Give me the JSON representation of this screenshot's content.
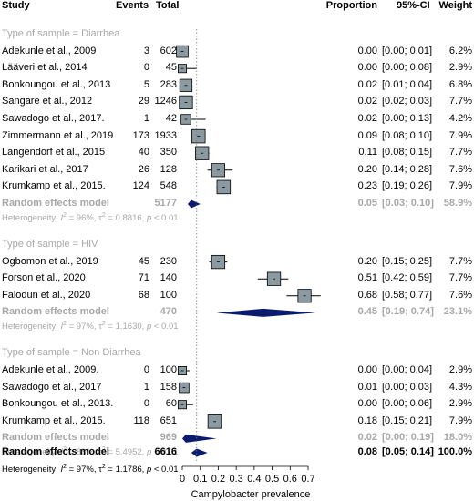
{
  "chart_data": {
    "type": "forest",
    "columns": [
      "Study",
      "Events",
      "Total",
      "Proportion",
      "95%-CI",
      "Weight"
    ],
    "xlabel": "Campylobacter prevalence",
    "xlim": [
      0,
      0.7
    ],
    "xticks": [
      "0",
      "0.1",
      "0.2",
      "0.3",
      "0.4",
      "0.5",
      "0.6",
      "0.7"
    ],
    "reference_line": 0.08,
    "groups": [
      {
        "label": "Type of sample = Diarrhea",
        "studies": [
          {
            "study": "Adekunle et al., 2009",
            "events": "3",
            "total": "602",
            "p": 0.0,
            "lo": 0.0,
            "hi": 0.01,
            "prop": "0.00",
            "ci": "[0.00; 0.01]",
            "weight": "6.2%"
          },
          {
            "study": "Lääveri et al., 2014",
            "events": "0",
            "total": "45",
            "p": 0.0,
            "lo": 0.0,
            "hi": 0.08,
            "prop": "0.00",
            "ci": "[0.00; 0.08]",
            "weight": "2.9%"
          },
          {
            "study": "Bonkoungou et al., 2013",
            "events": "5",
            "total": "283",
            "p": 0.02,
            "lo": 0.01,
            "hi": 0.04,
            "prop": "0.02",
            "ci": "[0.01; 0.04]",
            "weight": "6.8%"
          },
          {
            "study": "Sangare et al., 2012",
            "events": "29",
            "total": "1246",
            "p": 0.02,
            "lo": 0.02,
            "hi": 0.03,
            "prop": "0.02",
            "ci": "[0.02; 0.03]",
            "weight": "7.7%"
          },
          {
            "study": "Sawadogo et al., 2017.",
            "events": "1",
            "total": "42",
            "p": 0.02,
            "lo": 0.0,
            "hi": 0.13,
            "prop": "0.02",
            "ci": "[0.00; 0.13]",
            "weight": "4.2%"
          },
          {
            "study": "Zimmermann et al., 2019",
            "events": "173",
            "total": "1933",
            "p": 0.09,
            "lo": 0.08,
            "hi": 0.1,
            "prop": "0.09",
            "ci": "[0.08; 0.10]",
            "weight": "7.9%"
          },
          {
            "study": "Langendorf et al., 2015",
            "events": "40",
            "total": "350",
            "p": 0.11,
            "lo": 0.08,
            "hi": 0.15,
            "prop": "0.11",
            "ci": "[0.08; 0.15]",
            "weight": "7.7%"
          },
          {
            "study": "Karikari et al., 2017",
            "events": "26",
            "total": "128",
            "p": 0.2,
            "lo": 0.14,
            "hi": 0.28,
            "prop": "0.20",
            "ci": "[0.14; 0.28]",
            "weight": "7.6%"
          },
          {
            "study": "Krumkamp et al., 2015.",
            "events": "124",
            "total": "548",
            "p": 0.23,
            "lo": 0.19,
            "hi": 0.26,
            "prop": "0.23",
            "ci": "[0.19; 0.26]",
            "weight": "7.9%"
          }
        ],
        "model": {
          "label": "Random effects model",
          "total": "5177",
          "p": 0.05,
          "lo": 0.03,
          "hi": 0.1,
          "prop": "0.05",
          "ci": "[0.03; 0.10]",
          "weight": "58.9%"
        },
        "heterogeneity": {
          "prefix": "Heterogeneity: ",
          "i2": "I",
          "sup": "2",
          "rest": " = 96%, τ",
          "sup2": "2",
          "rest2": " = 0.8816, ",
          "pvar": "p",
          "rest3": " < 0.01"
        }
      },
      {
        "label": "Type of sample = HIV",
        "studies": [
          {
            "study": "Ogbomon et al., 2019",
            "events": "45",
            "total": "230",
            "p": 0.2,
            "lo": 0.15,
            "hi": 0.25,
            "prop": "0.20",
            "ci": "[0.15; 0.25]",
            "weight": "7.7%"
          },
          {
            "study": "Forson et al., 2020",
            "events": "71",
            "total": "140",
            "p": 0.51,
            "lo": 0.42,
            "hi": 0.59,
            "prop": "0.51",
            "ci": "[0.42; 0.59]",
            "weight": "7.7%"
          },
          {
            "study": "Falodun et al., 2020",
            "events": "68",
            "total": "100",
            "p": 0.68,
            "lo": 0.58,
            "hi": 0.77,
            "prop": "0.68",
            "ci": "[0.58; 0.77]",
            "weight": "7.6%"
          }
        ],
        "model": {
          "label": "Random effects model",
          "total": "470",
          "p": 0.45,
          "lo": 0.19,
          "hi": 0.74,
          "prop": "0.45",
          "ci": "[0.19; 0.74]",
          "weight": "23.1%"
        },
        "heterogeneity": {
          "prefix": "Heterogeneity: ",
          "i2": "I",
          "sup": "2",
          "rest": " = 97%, τ",
          "sup2": "2",
          "rest2": " = 1.1630, ",
          "pvar": "p",
          "rest3": " < 0.01"
        }
      },
      {
        "label": "Type of sample = Non Diarrhea",
        "studies": [
          {
            "study": "Adekunle et al., 2009.",
            "events": "0",
            "total": "100",
            "p": 0.0,
            "lo": 0.0,
            "hi": 0.04,
            "prop": "0.00",
            "ci": "[0.00; 0.04]",
            "weight": "2.9%"
          },
          {
            "study": "Sawadogo et al., 2017",
            "events": "1",
            "total": "158",
            "p": 0.01,
            "lo": 0.0,
            "hi": 0.03,
            "prop": "0.01",
            "ci": "[0.00; 0.03]",
            "weight": "4.3%"
          },
          {
            "study": "Bonkoungou et al., 2013.",
            "events": "0",
            "total": "60",
            "p": 0.0,
            "lo": 0.0,
            "hi": 0.06,
            "prop": "0.00",
            "ci": "[0.00; 0.06]",
            "weight": "2.9%"
          },
          {
            "study": "Krumkamp et al., 2015.",
            "events": "118",
            "total": "651",
            "p": 0.18,
            "lo": 0.15,
            "hi": 0.21,
            "prop": "0.18",
            "ci": "[0.15; 0.21]",
            "weight": "7.9%"
          }
        ],
        "model": {
          "label": "Random effects model",
          "total": "969",
          "p": 0.02,
          "lo": 0.0,
          "hi": 0.19,
          "prop": "0.02",
          "ci": "[0.00; 0.19]",
          "weight": "18.0%"
        },
        "heterogeneity": {
          "prefix": "Heterogeneity: ",
          "i2": "I",
          "sup": "2",
          "rest": " = 88%, τ",
          "sup2": "2",
          "rest2": " = 5.4952, ",
          "pvar": "p",
          "rest3": " < 0.01"
        }
      }
    ],
    "overall": {
      "label": "Random effects model",
      "total": "6616",
      "p": 0.08,
      "lo": 0.05,
      "hi": 0.14,
      "prop": "0.08",
      "ci": "[0.05; 0.14]",
      "weight": "100.0%"
    },
    "overall_heterogeneity": {
      "prefix": "Heterogeneity: ",
      "i2": "I",
      "sup": "2",
      "rest": " = 97%, τ",
      "sup2": "2",
      "rest2": " = 1.1786, ",
      "pvar": "p",
      "rest3": " < 0.01"
    },
    "colors": {
      "square": "#8a9aa0",
      "diamond": "#0a1a6e",
      "grey_text": "#a8a8a8",
      "reference": "#7a7a7a"
    }
  }
}
